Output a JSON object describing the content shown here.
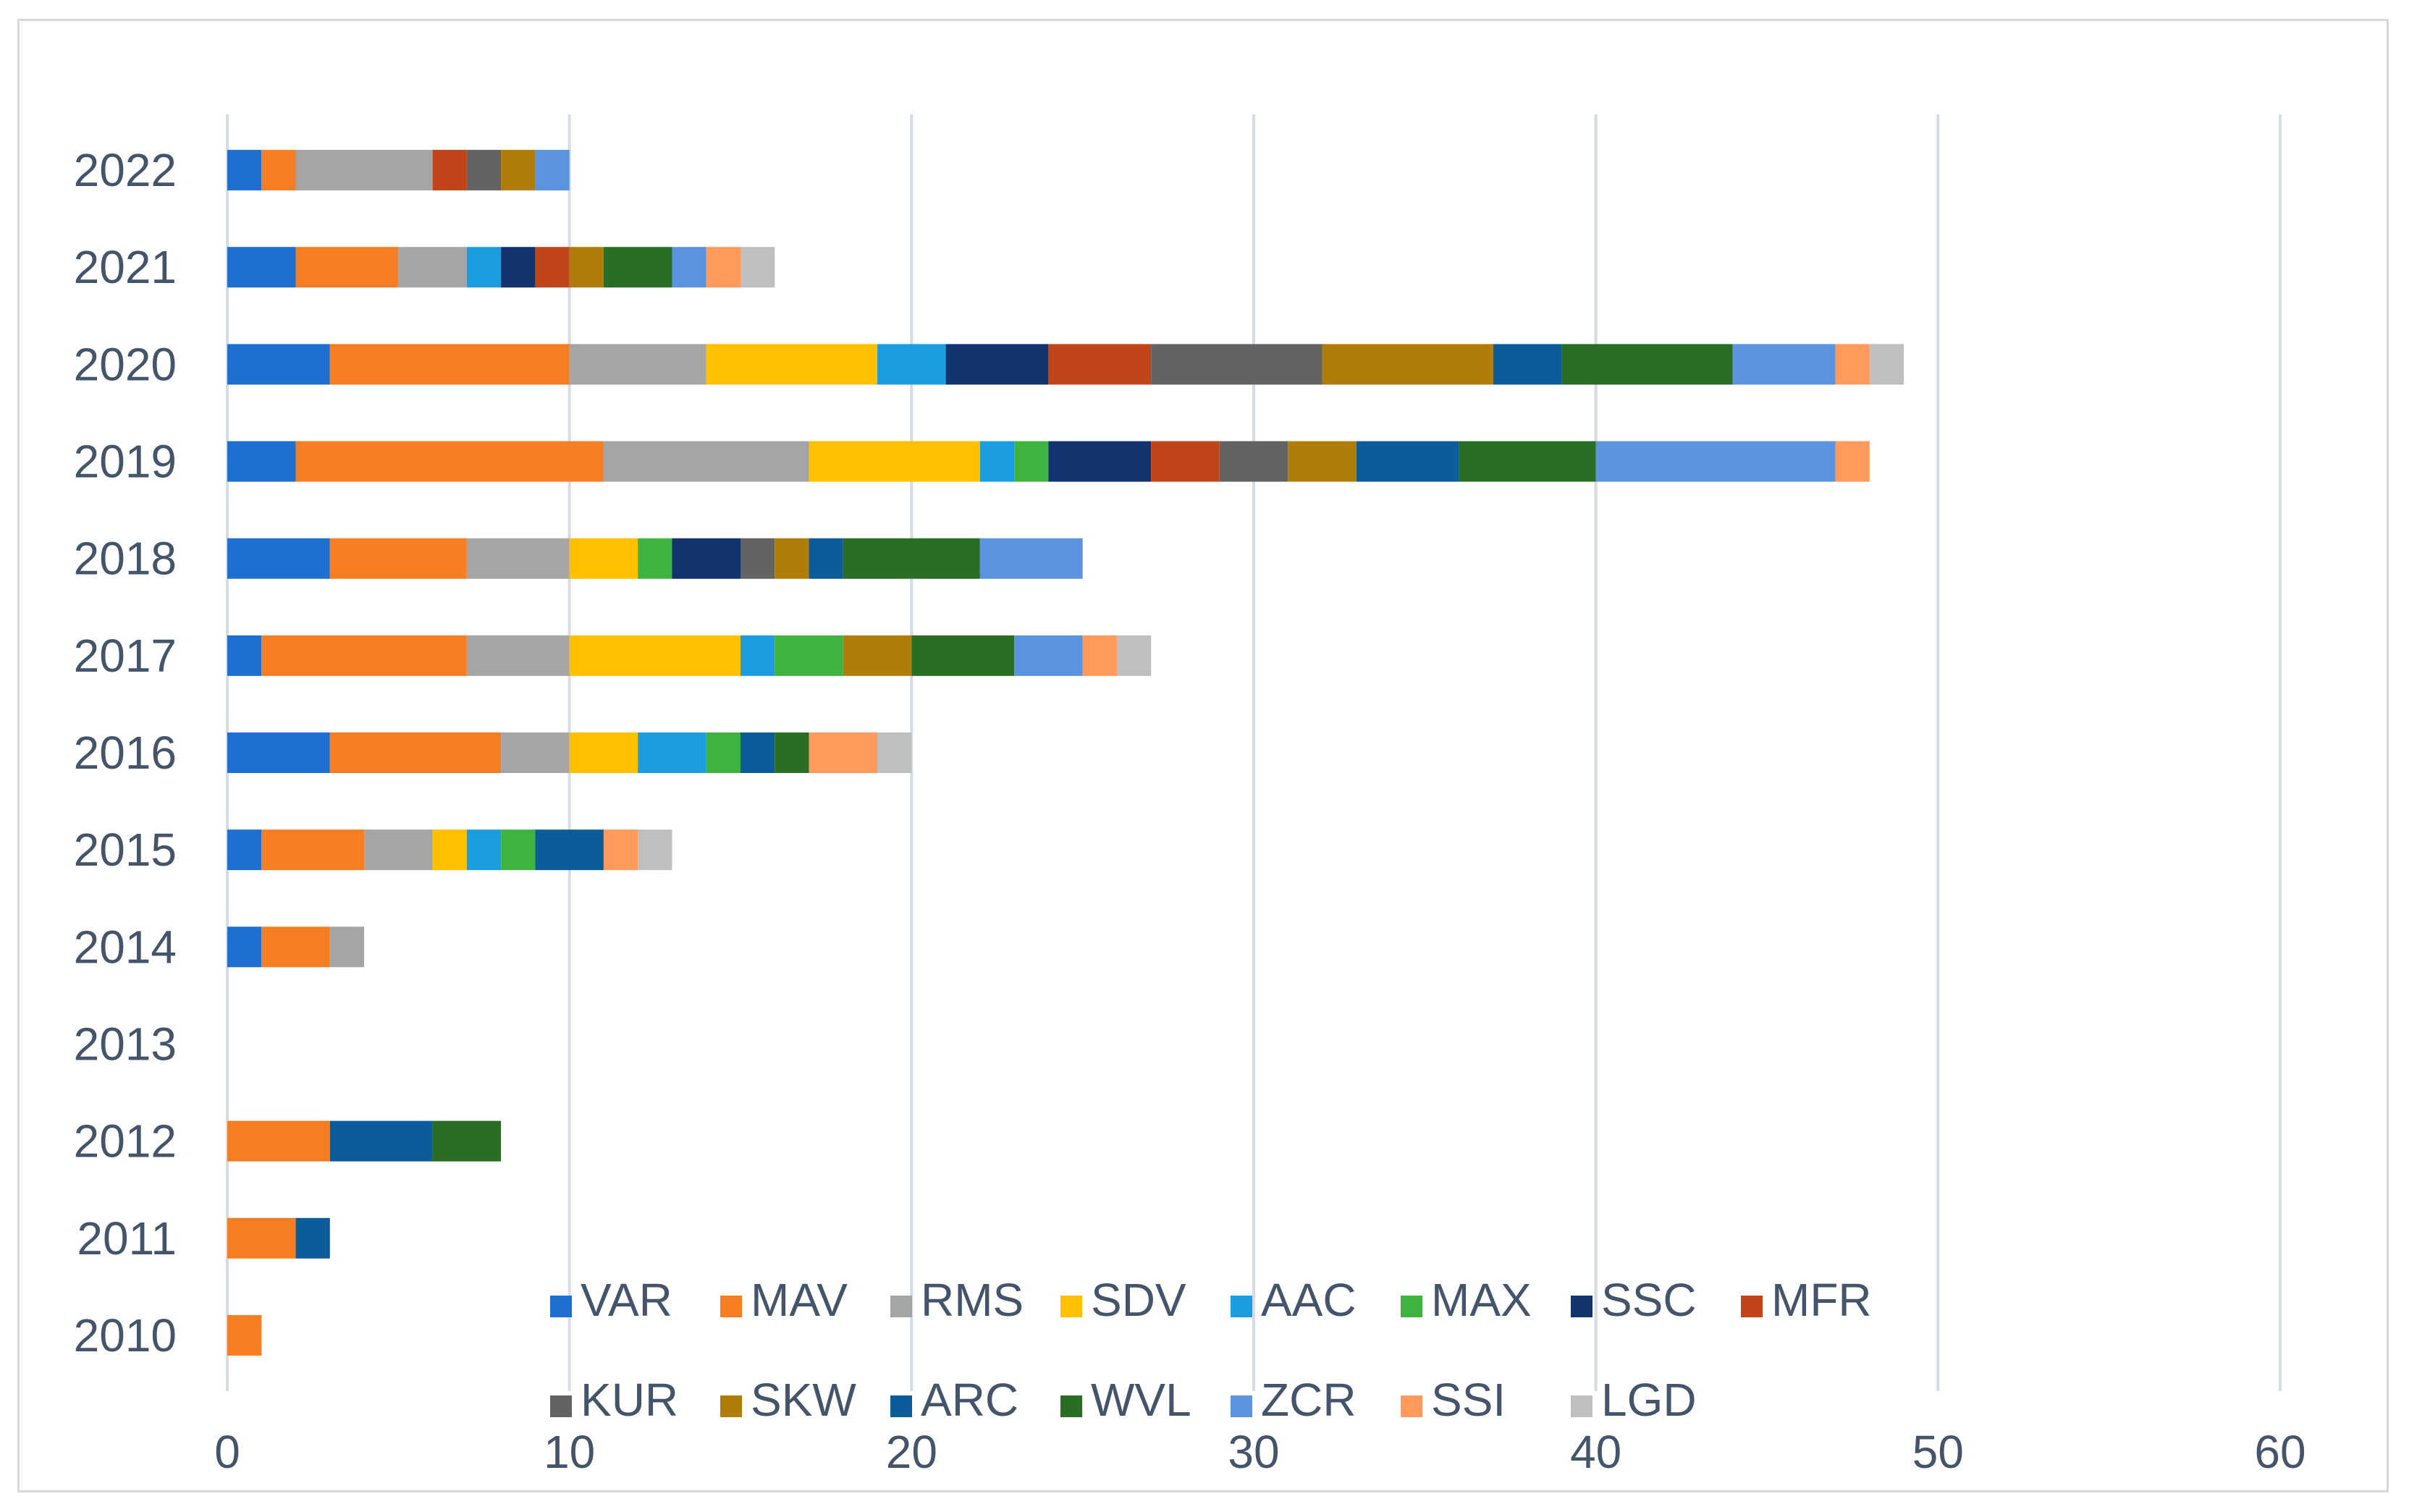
{
  "chart_data": {
    "type": "bar",
    "orientation": "horizontal",
    "stacked": true,
    "title": "",
    "xlabel": "",
    "ylabel": "",
    "xlim": [
      0,
      60
    ],
    "x_ticks": [
      0,
      10,
      20,
      30,
      40,
      50,
      60
    ],
    "grid": "vertical",
    "legend_position": "bottom-inside",
    "categories": [
      "2022",
      "2021",
      "2020",
      "2019",
      "2018",
      "2017",
      "2016",
      "2015",
      "2014",
      "2013",
      "2012",
      "2011",
      "2010"
    ],
    "series": [
      {
        "name": "VAR",
        "color": "#1f6fd1",
        "values": [
          1,
          2,
          3,
          2,
          3,
          1,
          3,
          1,
          1,
          0,
          0,
          0,
          0
        ]
      },
      {
        "name": "MAV",
        "color": "#f57e25",
        "values": [
          1,
          3,
          7,
          9,
          4,
          6,
          5,
          3,
          2,
          0,
          3,
          2,
          1
        ]
      },
      {
        "name": "RMS",
        "color": "#a5a5a5",
        "values": [
          4,
          2,
          4,
          6,
          3,
          3,
          2,
          2,
          1,
          0,
          0,
          0,
          0
        ]
      },
      {
        "name": "SDV",
        "color": "#ffc000",
        "values": [
          0,
          0,
          5,
          5,
          2,
          5,
          2,
          1,
          0,
          0,
          0,
          0,
          0
        ]
      },
      {
        "name": "AAC",
        "color": "#1b9de2",
        "values": [
          0,
          1,
          2,
          1,
          0,
          1,
          2,
          1,
          0,
          0,
          0,
          0,
          0
        ]
      },
      {
        "name": "MAX",
        "color": "#3fb33f",
        "values": [
          0,
          0,
          0,
          1,
          1,
          2,
          1,
          1,
          0,
          0,
          0,
          0,
          0
        ]
      },
      {
        "name": "SSC",
        "color": "#12346e",
        "values": [
          0,
          1,
          3,
          3,
          2,
          0,
          0,
          0,
          0,
          0,
          0,
          0,
          0
        ]
      },
      {
        "name": "MFR",
        "color": "#c0461a",
        "values": [
          1,
          1,
          3,
          2,
          0,
          0,
          0,
          0,
          0,
          0,
          0,
          0,
          0
        ]
      },
      {
        "name": "KUR",
        "color": "#636363",
        "values": [
          1,
          0,
          5,
          2,
          1,
          0,
          0,
          0,
          0,
          0,
          0,
          0,
          0
        ]
      },
      {
        "name": "SKW",
        "color": "#b07d0a",
        "values": [
          1,
          1,
          5,
          2,
          1,
          2,
          0,
          0,
          0,
          0,
          0,
          0,
          0
        ]
      },
      {
        "name": "ARC",
        "color": "#0c5c99",
        "values": [
          0,
          0,
          2,
          3,
          1,
          0,
          1,
          2,
          0,
          0,
          3,
          1,
          0
        ]
      },
      {
        "name": "WVL",
        "color": "#2a6e25",
        "values": [
          0,
          2,
          5,
          4,
          4,
          3,
          1,
          0,
          0,
          0,
          2,
          0,
          0
        ]
      },
      {
        "name": "ZCR",
        "color": "#5b93de",
        "values": [
          1,
          1,
          3,
          7,
          3,
          2,
          0,
          0,
          0,
          0,
          0,
          0,
          0
        ]
      },
      {
        "name": "SSI",
        "color": "#ff9a5c",
        "values": [
          0,
          1,
          1,
          1,
          0,
          1,
          2,
          1,
          0,
          0,
          0,
          0,
          0
        ]
      },
      {
        "name": "LGD",
        "color": "#bfbfbf",
        "values": [
          0,
          1,
          1,
          0,
          0,
          1,
          1,
          1,
          0,
          0,
          0,
          0,
          0
        ]
      }
    ]
  },
  "colors": {
    "grid": "#d6dce4",
    "axis_text": "#44546a",
    "frame": "#d9d9d9"
  }
}
